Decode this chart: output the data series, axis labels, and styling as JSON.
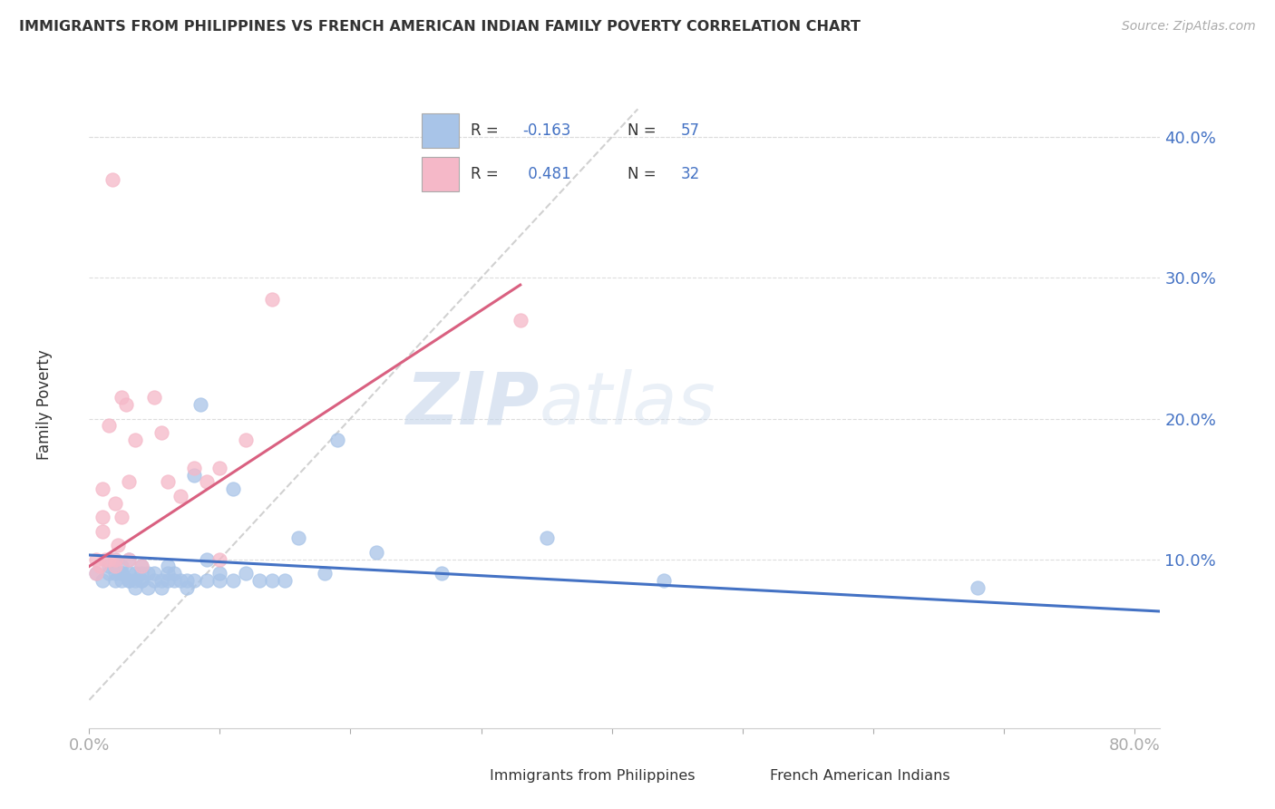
{
  "title": "IMMIGRANTS FROM PHILIPPINES VS FRENCH AMERICAN INDIAN FAMILY POVERTY CORRELATION CHART",
  "source": "Source: ZipAtlas.com",
  "ylabel": "Family Poverty",
  "xlim": [
    0.0,
    0.82
  ],
  "ylim": [
    -0.02,
    0.44
  ],
  "yticks": [
    0.1,
    0.2,
    0.3,
    0.4
  ],
  "ytick_labels": [
    "10.0%",
    "20.0%",
    "30.0%",
    "40.0%"
  ],
  "blue_color": "#a8c4e8",
  "pink_color": "#f5b8c8",
  "blue_line_color": "#4472c4",
  "pink_line_color": "#d96080",
  "ref_line_color": "#cccccc",
  "watermark_zip": "ZIP",
  "watermark_atlas": "atlas",
  "blue_scatter_x": [
    0.005,
    0.01,
    0.015,
    0.015,
    0.02,
    0.02,
    0.02,
    0.025,
    0.025,
    0.025,
    0.025,
    0.03,
    0.03,
    0.03,
    0.03,
    0.035,
    0.035,
    0.035,
    0.04,
    0.04,
    0.04,
    0.04,
    0.045,
    0.045,
    0.05,
    0.05,
    0.055,
    0.055,
    0.06,
    0.06,
    0.06,
    0.065,
    0.065,
    0.07,
    0.075,
    0.075,
    0.08,
    0.08,
    0.085,
    0.09,
    0.09,
    0.1,
    0.1,
    0.11,
    0.11,
    0.12,
    0.13,
    0.14,
    0.15,
    0.16,
    0.18,
    0.19,
    0.22,
    0.27,
    0.35,
    0.44,
    0.68
  ],
  "blue_scatter_y": [
    0.09,
    0.085,
    0.095,
    0.09,
    0.09,
    0.085,
    0.1,
    0.09,
    0.085,
    0.095,
    0.09,
    0.085,
    0.09,
    0.1,
    0.085,
    0.09,
    0.085,
    0.08,
    0.085,
    0.09,
    0.085,
    0.095,
    0.09,
    0.08,
    0.085,
    0.09,
    0.085,
    0.08,
    0.09,
    0.085,
    0.095,
    0.09,
    0.085,
    0.085,
    0.085,
    0.08,
    0.085,
    0.16,
    0.21,
    0.085,
    0.1,
    0.085,
    0.09,
    0.085,
    0.15,
    0.09,
    0.085,
    0.085,
    0.085,
    0.115,
    0.09,
    0.185,
    0.105,
    0.09,
    0.115,
    0.085,
    0.08
  ],
  "pink_scatter_x": [
    0.005,
    0.005,
    0.008,
    0.01,
    0.01,
    0.01,
    0.012,
    0.015,
    0.015,
    0.018,
    0.02,
    0.02,
    0.02,
    0.022,
    0.025,
    0.025,
    0.028,
    0.03,
    0.03,
    0.035,
    0.04,
    0.05,
    0.055,
    0.06,
    0.07,
    0.08,
    0.09,
    0.1,
    0.1,
    0.12,
    0.14,
    0.33
  ],
  "pink_scatter_y": [
    0.09,
    0.1,
    0.095,
    0.12,
    0.13,
    0.15,
    0.1,
    0.1,
    0.195,
    0.37,
    0.095,
    0.1,
    0.14,
    0.11,
    0.13,
    0.215,
    0.21,
    0.1,
    0.155,
    0.185,
    0.095,
    0.215,
    0.19,
    0.155,
    0.145,
    0.165,
    0.155,
    0.1,
    0.165,
    0.185,
    0.285,
    0.27
  ],
  "blue_trend_x": [
    0.0,
    0.82
  ],
  "blue_trend_y": [
    0.103,
    0.063
  ],
  "pink_trend_x": [
    0.0,
    0.33
  ],
  "pink_trend_y": [
    0.095,
    0.295
  ],
  "ref_line_x": [
    0.0,
    0.42
  ],
  "ref_line_y": [
    0.0,
    0.42
  ]
}
